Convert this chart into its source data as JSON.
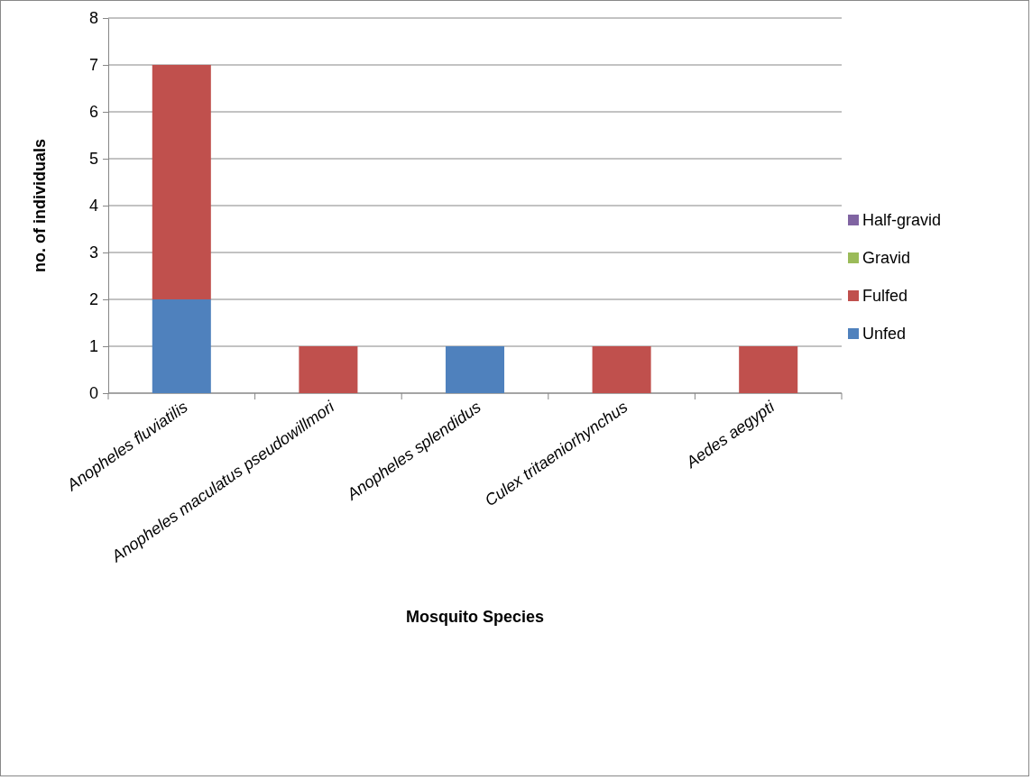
{
  "chart_data": {
    "type": "bar",
    "stacked": true,
    "xlabel": "Mosquito Species",
    "ylabel": "no. of individuals",
    "categories": [
      "Anopheles fluviatilis",
      "Anopheles maculatus pseudowillmori",
      "Anopheles splendidus",
      "Culex tritaeniorhynchus",
      "Aedes aegypti"
    ],
    "series": [
      {
        "name": "Unfed",
        "color": "#4f81bd",
        "values": [
          2,
          0,
          1,
          0,
          0
        ]
      },
      {
        "name": "Fulfed",
        "color": "#c0504d",
        "values": [
          5,
          1,
          0,
          1,
          1
        ]
      },
      {
        "name": "Gravid",
        "color": "#9bbb59",
        "values": [
          0,
          0,
          0,
          0,
          0
        ]
      },
      {
        "name": "Half-gravid",
        "color": "#8064a2",
        "values": [
          0,
          0,
          0,
          0,
          0
        ]
      }
    ],
    "ylim": [
      0,
      8
    ],
    "yticks": [
      0,
      1,
      2,
      3,
      4,
      5,
      6,
      7,
      8
    ],
    "grid": "y",
    "legend": "right"
  }
}
